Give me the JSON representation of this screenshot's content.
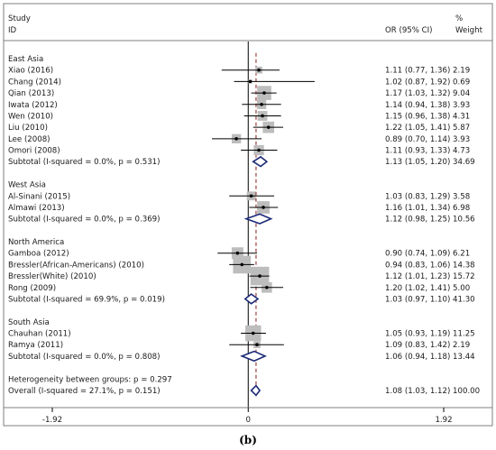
{
  "chart_data": {
    "type": "forest",
    "header": {
      "study": "Study",
      "id": "ID",
      "effect": "OR (95% CI)",
      "pct": "%",
      "weight": "Weight"
    },
    "groups": [
      {
        "name": "East Asia",
        "studies": [
          {
            "label": "Xiao (2016)",
            "or": 1.11,
            "lo": 0.77,
            "hi": 1.36,
            "weight": 2.19,
            "text": "1.11 (0.77, 1.36) 2.19"
          },
          {
            "label": "Chang (2014)",
            "or": 1.02,
            "lo": 0.87,
            "hi": 1.92,
            "weight": 0.69,
            "text": "1.02 (0.87, 1.92) 0.69"
          },
          {
            "label": "Qian (2013)",
            "or": 1.17,
            "lo": 1.03,
            "hi": 1.32,
            "weight": 9.04,
            "text": "1.17 (1.03, 1.32) 9.04"
          },
          {
            "label": "Iwata (2012)",
            "or": 1.14,
            "lo": 0.94,
            "hi": 1.38,
            "weight": 3.93,
            "text": "1.14 (0.94, 1.38) 3.93"
          },
          {
            "label": "Wen (2010)",
            "or": 1.15,
            "lo": 0.96,
            "hi": 1.38,
            "weight": 4.31,
            "text": "1.15 (0.96, 1.38) 4.31"
          },
          {
            "label": "Liu (2010)",
            "or": 1.22,
            "lo": 1.05,
            "hi": 1.41,
            "weight": 5.87,
            "text": "1.22 (1.05, 1.41) 5.87"
          },
          {
            "label": "Lee (2008)",
            "or": 0.89,
            "lo": 0.7,
            "hi": 1.14,
            "weight": 3.93,
            "text": "0.89 (0.70, 1.14) 3.93"
          },
          {
            "label": "Omori (2008)",
            "or": 1.11,
            "lo": 0.93,
            "hi": 1.33,
            "weight": 4.73,
            "text": "1.11 (0.93, 1.33) 4.73"
          }
        ],
        "subtotal": {
          "label": "Subtotal  (I-squared = 0.0%, p = 0.531)",
          "or": 1.13,
          "lo": 1.05,
          "hi": 1.2,
          "text": "1.13 (1.05, 1.20) 34.69"
        }
      },
      {
        "name": "West Asia",
        "studies": [
          {
            "label": "Al-Sinani (2015)",
            "or": 1.03,
            "lo": 0.83,
            "hi": 1.29,
            "weight": 3.58,
            "text": "1.03 (0.83, 1.29) 3.58"
          },
          {
            "label": "Almawi (2013)",
            "or": 1.16,
            "lo": 1.01,
            "hi": 1.34,
            "weight": 6.98,
            "text": "1.16 (1.01, 1.34) 6.98"
          }
        ],
        "subtotal": {
          "label": "Subtotal  (I-squared = 0.0%, p = 0.369)",
          "or": 1.12,
          "lo": 0.98,
          "hi": 1.25,
          "text": "1.12 (0.98, 1.25) 10.56"
        }
      },
      {
        "name": "North America",
        "studies": [
          {
            "label": "Gamboa  (2012)",
            "or": 0.9,
            "lo": 0.74,
            "hi": 1.09,
            "weight": 6.21,
            "text": "0.90 (0.74, 1.09) 6.21"
          },
          {
            "label": "Bressler(African-Americans) (2010)",
            "or": 0.94,
            "lo": 0.83,
            "hi": 1.06,
            "weight": 14.38,
            "text": "0.94 (0.83, 1.06) 14.38"
          },
          {
            "label": "Bressler(White) (2010)",
            "or": 1.12,
            "lo": 1.01,
            "hi": 1.23,
            "weight": 15.72,
            "text": "1.12 (1.01, 1.23) 15.72"
          },
          {
            "label": "Rong  (2009)",
            "or": 1.2,
            "lo": 1.02,
            "hi": 1.41,
            "weight": 5.0,
            "text": "1.20 (1.02, 1.41) 5.00"
          }
        ],
        "subtotal": {
          "label": "Subtotal  (I-squared = 69.9%, p = 0.019)",
          "or": 1.03,
          "lo": 0.97,
          "hi": 1.1,
          "text": "1.03 (0.97, 1.10) 41.30"
        }
      },
      {
        "name": "South Asia",
        "studies": [
          {
            "label": "Chauhan  (2011)",
            "or": 1.05,
            "lo": 0.93,
            "hi": 1.19,
            "weight": 11.25,
            "text": "1.05 (0.93, 1.19) 11.25"
          },
          {
            "label": "Ramya  (2011)",
            "or": 1.09,
            "lo": 0.83,
            "hi": 1.42,
            "weight": 2.19,
            "text": "1.09 (0.83, 1.42) 2.19"
          }
        ],
        "subtotal": {
          "label": "Subtotal  (I-squared = 0.0%, p = 0.808)",
          "or": 1.06,
          "lo": 0.94,
          "hi": 1.18,
          "text": "1.06 (0.94, 1.18) 13.44"
        }
      }
    ],
    "heterogeneity": "Heterogeneity between groups: p = 0.297",
    "overall": {
      "label": "Overall  (I-squared = 27.1%, p = 0.151)",
      "or": 1.08,
      "lo": 1.03,
      "hi": 1.12,
      "text": "1.08 (1.03, 1.12) 100.00"
    },
    "x_scale": "log",
    "x_ticks": [
      {
        "value": 0.146,
        "label": "-1.92"
      },
      {
        "value": 1.0,
        "label": "0"
      },
      {
        "value": 6.82,
        "label": "1.92"
      }
    ],
    "xlim": [
      0.0905,
      11.0
    ],
    "null_line": 1.0,
    "overall_line": 1.08,
    "caption": "(b)",
    "colors": {
      "box": "#bdbdbd",
      "diamond": "#1c2a78",
      "line": "#000000",
      "dash": "#8b1a1a",
      "frame": "#7f7f7f"
    }
  }
}
